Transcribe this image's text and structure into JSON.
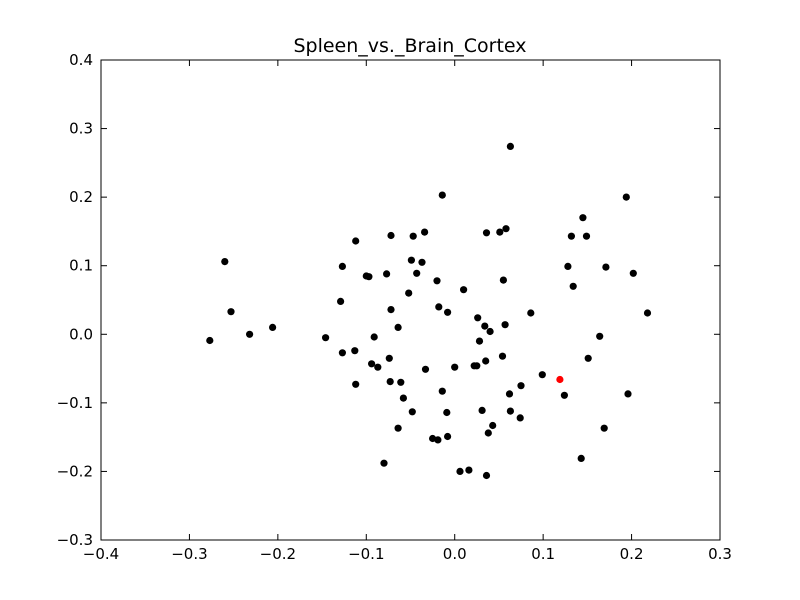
{
  "chart_data": {
    "type": "scatter",
    "title": "Spleen_vs._Brain_Cortex",
    "xlabel": "",
    "ylabel": "",
    "xlim": [
      -0.4,
      0.3
    ],
    "ylim": [
      -0.3,
      0.4
    ],
    "grid": false,
    "x_ticks": [
      -0.4,
      -0.3,
      -0.2,
      -0.1,
      0.0,
      0.1,
      0.2,
      0.3
    ],
    "x_tick_labels": [
      "−0.4",
      "−0.3",
      "−0.2",
      "−0.1",
      "0.0",
      "0.1",
      "0.2",
      "0.3"
    ],
    "y_ticks": [
      -0.3,
      -0.2,
      -0.1,
      0.0,
      0.1,
      0.2,
      0.3,
      0.4
    ],
    "y_tick_labels": [
      "−0.3",
      "−0.2",
      "−0.1",
      "0.0",
      "0.1",
      "0.2",
      "0.3",
      "0.4"
    ],
    "colors": {
      "points": "#000000",
      "highlight": "#ff0000"
    },
    "series": [
      {
        "color": "#000000",
        "points": [
          [
            -0.277,
            -0.009
          ],
          [
            -0.26,
            0.106
          ],
          [
            -0.253,
            0.033
          ],
          [
            -0.232,
            0.0
          ],
          [
            -0.206,
            0.01
          ],
          [
            -0.146,
            -0.005
          ],
          [
            -0.127,
            -0.027
          ],
          [
            -0.129,
            0.048
          ],
          [
            -0.127,
            0.099
          ],
          [
            -0.112,
            0.136
          ],
          [
            -0.112,
            -0.073
          ],
          [
            -0.113,
            -0.024
          ],
          [
            -0.1,
            0.085
          ],
          [
            -0.097,
            0.084
          ],
          [
            -0.094,
            -0.043
          ],
          [
            -0.091,
            -0.004
          ],
          [
            -0.087,
            -0.048
          ],
          [
            -0.08,
            -0.188
          ],
          [
            -0.077,
            0.088
          ],
          [
            -0.074,
            -0.035
          ],
          [
            -0.073,
            -0.069
          ],
          [
            -0.072,
            0.144
          ],
          [
            -0.072,
            0.036
          ],
          [
            -0.064,
            -0.137
          ],
          [
            -0.064,
            0.01
          ],
          [
            -0.061,
            -0.07
          ],
          [
            -0.058,
            -0.093
          ],
          [
            -0.052,
            0.06
          ],
          [
            -0.049,
            0.108
          ],
          [
            -0.047,
            0.143
          ],
          [
            -0.048,
            -0.113
          ],
          [
            -0.043,
            0.089
          ],
          [
            -0.037,
            0.105
          ],
          [
            -0.034,
            0.149
          ],
          [
            -0.033,
            -0.051
          ],
          [
            -0.025,
            -0.152
          ],
          [
            -0.02,
            0.078
          ],
          [
            -0.019,
            -0.154
          ],
          [
            -0.018,
            0.04
          ],
          [
            -0.014,
            -0.083
          ],
          [
            -0.014,
            0.203
          ],
          [
            -0.009,
            -0.114
          ],
          [
            -0.008,
            -0.149
          ],
          [
            -0.008,
            0.032
          ],
          [
            0.0,
            -0.048
          ],
          [
            0.006,
            -0.2
          ],
          [
            0.01,
            0.065
          ],
          [
            0.016,
            -0.198
          ],
          [
            0.022,
            -0.046
          ],
          [
            0.025,
            -0.046
          ],
          [
            0.026,
            0.024
          ],
          [
            0.028,
            -0.01
          ],
          [
            0.031,
            -0.111
          ],
          [
            0.034,
            0.012
          ],
          [
            0.035,
            -0.039
          ],
          [
            0.036,
            -0.206
          ],
          [
            0.036,
            0.148
          ],
          [
            0.038,
            -0.144
          ],
          [
            0.04,
            0.004
          ],
          [
            0.043,
            -0.133
          ],
          [
            0.051,
            0.149
          ],
          [
            0.054,
            -0.032
          ],
          [
            0.055,
            0.079
          ],
          [
            0.057,
            0.014
          ],
          [
            0.058,
            0.154
          ],
          [
            0.062,
            -0.087
          ],
          [
            0.063,
            -0.112
          ],
          [
            0.063,
            0.274
          ],
          [
            0.074,
            -0.122
          ],
          [
            0.075,
            -0.075
          ],
          [
            0.086,
            0.031
          ],
          [
            0.099,
            -0.059
          ],
          [
            0.124,
            -0.089
          ],
          [
            0.128,
            0.099
          ],
          [
            0.132,
            0.143
          ],
          [
            0.134,
            0.07
          ],
          [
            0.143,
            -0.181
          ],
          [
            0.145,
            0.17
          ],
          [
            0.149,
            0.143
          ],
          [
            0.151,
            -0.035
          ],
          [
            0.164,
            -0.003
          ],
          [
            0.169,
            -0.137
          ],
          [
            0.171,
            0.098
          ],
          [
            0.194,
            0.2
          ],
          [
            0.196,
            -0.087
          ],
          [
            0.202,
            0.089
          ],
          [
            0.218,
            0.031
          ]
        ]
      },
      {
        "color": "#ff0000",
        "points": [
          [
            0.119,
            -0.066
          ]
        ]
      }
    ]
  }
}
